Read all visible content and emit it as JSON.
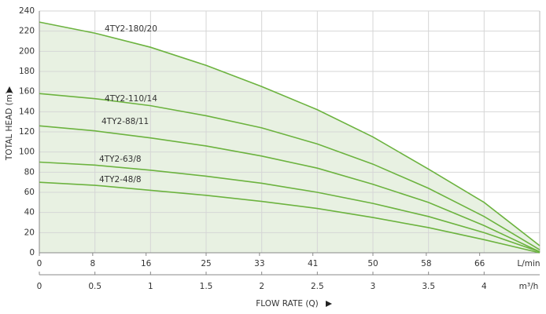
{
  "chart_data": {
    "type": "line",
    "y_label": "TOTAL HEAD (m)",
    "x_label": "FLOW RATE (Q)",
    "x_unit": "m³/h",
    "x2_unit": "L/min",
    "x": [
      0,
      0.5,
      1,
      1.5,
      2,
      2.5,
      3,
      3.5,
      4,
      4.5
    ],
    "series": [
      {
        "name": "4TY2-180/20",
        "color": "#6cb33f",
        "values": [
          229,
          218,
          204,
          186,
          165,
          142,
          115,
          83,
          50,
          7
        ]
      },
      {
        "name": "4TY2-110/14",
        "color": "#6cb33f",
        "values": [
          158,
          153,
          146,
          136,
          124,
          108,
          88,
          64,
          36,
          3
        ]
      },
      {
        "name": "4TY2-88/11",
        "color": "#6cb33f",
        "values": [
          126,
          121,
          114,
          106,
          96,
          84,
          68,
          50,
          27,
          1
        ]
      },
      {
        "name": "4TY2-63/8",
        "color": "#6cb33f",
        "values": [
          90,
          87,
          82,
          76,
          69,
          60,
          49,
          36,
          20,
          1
        ]
      },
      {
        "name": "4TY2-48/8",
        "color": "#6cb33f",
        "values": [
          70,
          67,
          62,
          57,
          51,
          44,
          35,
          25,
          13,
          0
        ]
      }
    ],
    "fill_color": "#e8f1e2",
    "xlim": [
      0,
      4.5
    ],
    "xticks": [
      0,
      0.5,
      1,
      1.5,
      2,
      2.5,
      3,
      3.5,
      4
    ],
    "x2lim": [
      0,
      75
    ],
    "x2ticks": [
      0,
      8,
      16,
      25,
      33,
      41,
      50,
      58,
      66
    ],
    "ylim": [
      0,
      240
    ],
    "yticks": [
      0,
      20,
      40,
      60,
      80,
      100,
      120,
      140,
      160,
      180,
      200,
      220,
      240
    ],
    "grid": true
  }
}
